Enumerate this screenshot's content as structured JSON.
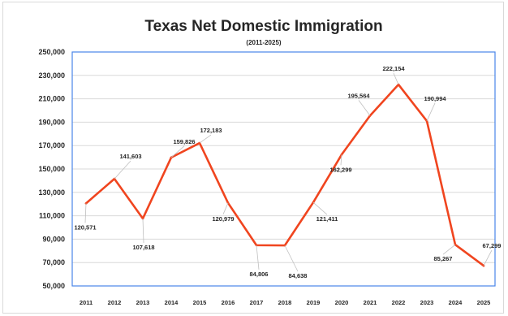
{
  "chart_data": {
    "type": "line",
    "title": "Texas Net Domestic Immigration",
    "subtitle": "(2011-2025)",
    "xlabel": "",
    "ylabel": "",
    "ylim": [
      50000,
      250000
    ],
    "yticks": [
      "250,000",
      "230,000",
      "210,000",
      "190,000",
      "170,000",
      "150,000",
      "130,000",
      "110,000",
      "90,000",
      "70,000",
      "50,000"
    ],
    "grid": true,
    "legend": "none",
    "categories": [
      "2011",
      "2012",
      "2013",
      "2014",
      "2015",
      "2016",
      "2017",
      "2018",
      "2019",
      "2020",
      "2021",
      "2022",
      "2023",
      "2024",
      "2025"
    ],
    "series": [
      {
        "values": [
          120571,
          141603,
          107618,
          159826,
          172183,
          120979,
          84806,
          84638,
          121411,
          162299,
          195564,
          222154,
          190994,
          85267,
          67299
        ],
        "labels": [
          "120,571",
          "141,603",
          "107,618",
          "159,826",
          "172,183",
          "120,979",
          "84,806",
          "84,638",
          "121,411",
          "162,299",
          "195,564",
          "222,154",
          "190,994",
          "85,267",
          "67,299"
        ]
      }
    ],
    "colors": {
      "line": "#f0451f",
      "plot_border": "#4a86e8",
      "grid": "#d9d9d9",
      "text": "#262626"
    }
  }
}
